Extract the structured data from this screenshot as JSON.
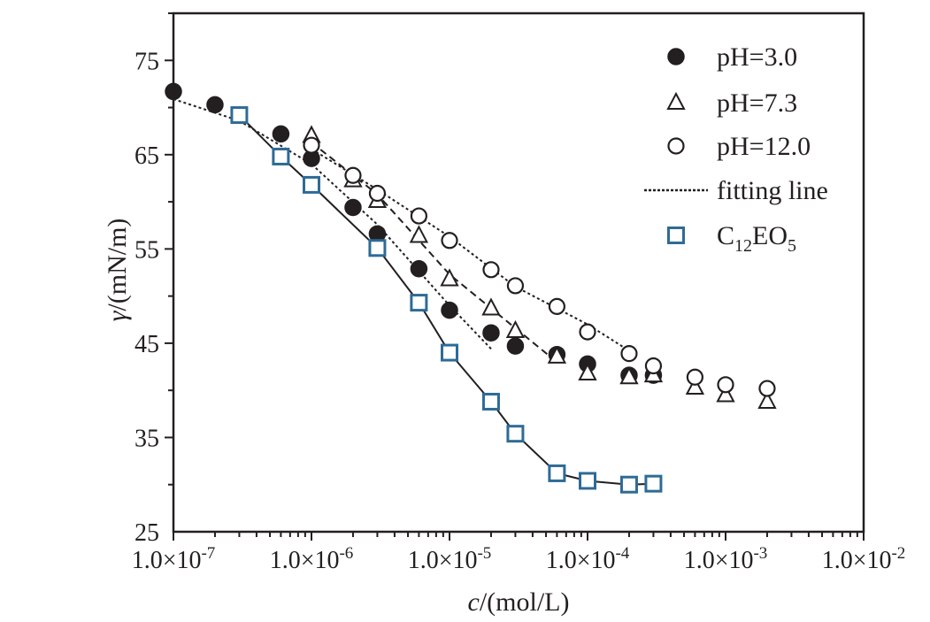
{
  "chart_data": {
    "type": "scatter",
    "title": "",
    "xlabel_italic": "c",
    "xlabel_rest": "/(mol/L)",
    "ylabel_italic": "γ",
    "ylabel_rest": "/(mN/m)",
    "x_scale": "log",
    "xlim": [
      1e-07,
      0.01
    ],
    "ylim": [
      25,
      80
    ],
    "x_ticks": [
      {
        "mant": "1.0×10",
        "exp": "-7",
        "value": 1e-07
      },
      {
        "mant": "1.0×10",
        "exp": "-6",
        "value": 1e-06
      },
      {
        "mant": "1.0×10",
        "exp": "-5",
        "value": 1e-05
      },
      {
        "mant": "1.0×10",
        "exp": "-4",
        "value": 0.0001
      },
      {
        "mant": "1.0×10",
        "exp": "-3",
        "value": 0.001
      },
      {
        "mant": "1.0×10",
        "exp": "-2",
        "value": 0.01
      }
    ],
    "y_ticks": [
      25,
      35,
      45,
      55,
      65,
      75
    ],
    "grid": false,
    "legend_position": "top-right",
    "series": [
      {
        "name": "pH=3.0",
        "marker": "filled-circle",
        "color": "#231f20",
        "x": [
          1e-07,
          2e-07,
          6e-07,
          1e-06,
          2e-06,
          3e-06,
          6e-06,
          1e-05,
          2e-05,
          3e-05,
          6e-05,
          0.0001,
          0.0002,
          0.0003
        ],
        "y": [
          71.7,
          70.3,
          67.2,
          64.6,
          59.4,
          56.6,
          52.9,
          48.5,
          46.1,
          44.7,
          43.8,
          42.8,
          41.6,
          41.6
        ]
      },
      {
        "name": "pH=7.3",
        "marker": "open-triangle",
        "color": "#231f20",
        "x": [
          1e-06,
          2e-06,
          3e-06,
          6e-06,
          1e-05,
          2e-05,
          3e-05,
          6e-05,
          0.0001,
          0.0002,
          0.0003,
          0.0006,
          0.001,
          0.002
        ],
        "y": [
          67.0,
          62.3,
          60.1,
          56.4,
          51.8,
          48.7,
          46.3,
          43.6,
          41.8,
          41.4,
          41.6,
          40.3,
          39.5,
          38.8
        ]
      },
      {
        "name": "pH=12.0",
        "marker": "open-circle",
        "color": "#231f20",
        "x": [
          1e-06,
          2e-06,
          3e-06,
          6e-06,
          1e-05,
          2e-05,
          3e-05,
          6e-05,
          0.0001,
          0.0002,
          0.0003,
          0.0006,
          0.001,
          0.002
        ],
        "y": [
          66.0,
          62.8,
          60.9,
          58.5,
          55.9,
          52.8,
          51.1,
          48.9,
          46.2,
          43.9,
          42.6,
          41.4,
          40.6,
          40.2
        ]
      },
      {
        "name": "C₁₂EO₅",
        "name_base1": "C",
        "name_sub1": "12",
        "name_base2": "EO",
        "name_sub2": "5",
        "marker": "open-square",
        "color": "#2e6b96",
        "connect": true,
        "x": [
          3e-07,
          6e-07,
          1e-06,
          3e-06,
          6e-06,
          1e-05,
          2e-05,
          3e-05,
          6e-05,
          0.0001,
          0.0002,
          0.0003
        ],
        "y": [
          69.2,
          64.8,
          61.8,
          55.1,
          49.3,
          44.0,
          38.8,
          35.4,
          31.2,
          30.4,
          30.0,
          30.1
        ]
      }
    ],
    "fitting_lines": {
      "name": "fitting line",
      "color": "#231f20",
      "lines": [
        {
          "x": [
            1e-07,
            3e-07,
            1e-06,
            3e-06,
            1e-05,
            2e-05
          ],
          "y": [
            70.9,
            68.6,
            64.0,
            57.6,
            49.0,
            44.4
          ]
        },
        {
          "x": [
            1e-06,
            3e-06,
            1e-05,
            3e-05,
            6e-05
          ],
          "y": [
            66.3,
            60.8,
            52.3,
            46.6,
            43.0
          ]
        },
        {
          "x": [
            1e-06,
            3e-06,
            1e-05,
            3e-05,
            0.0001,
            0.0002
          ],
          "y": [
            65.6,
            61.3,
            56.3,
            51.0,
            47.0,
            44.2
          ]
        }
      ]
    }
  }
}
